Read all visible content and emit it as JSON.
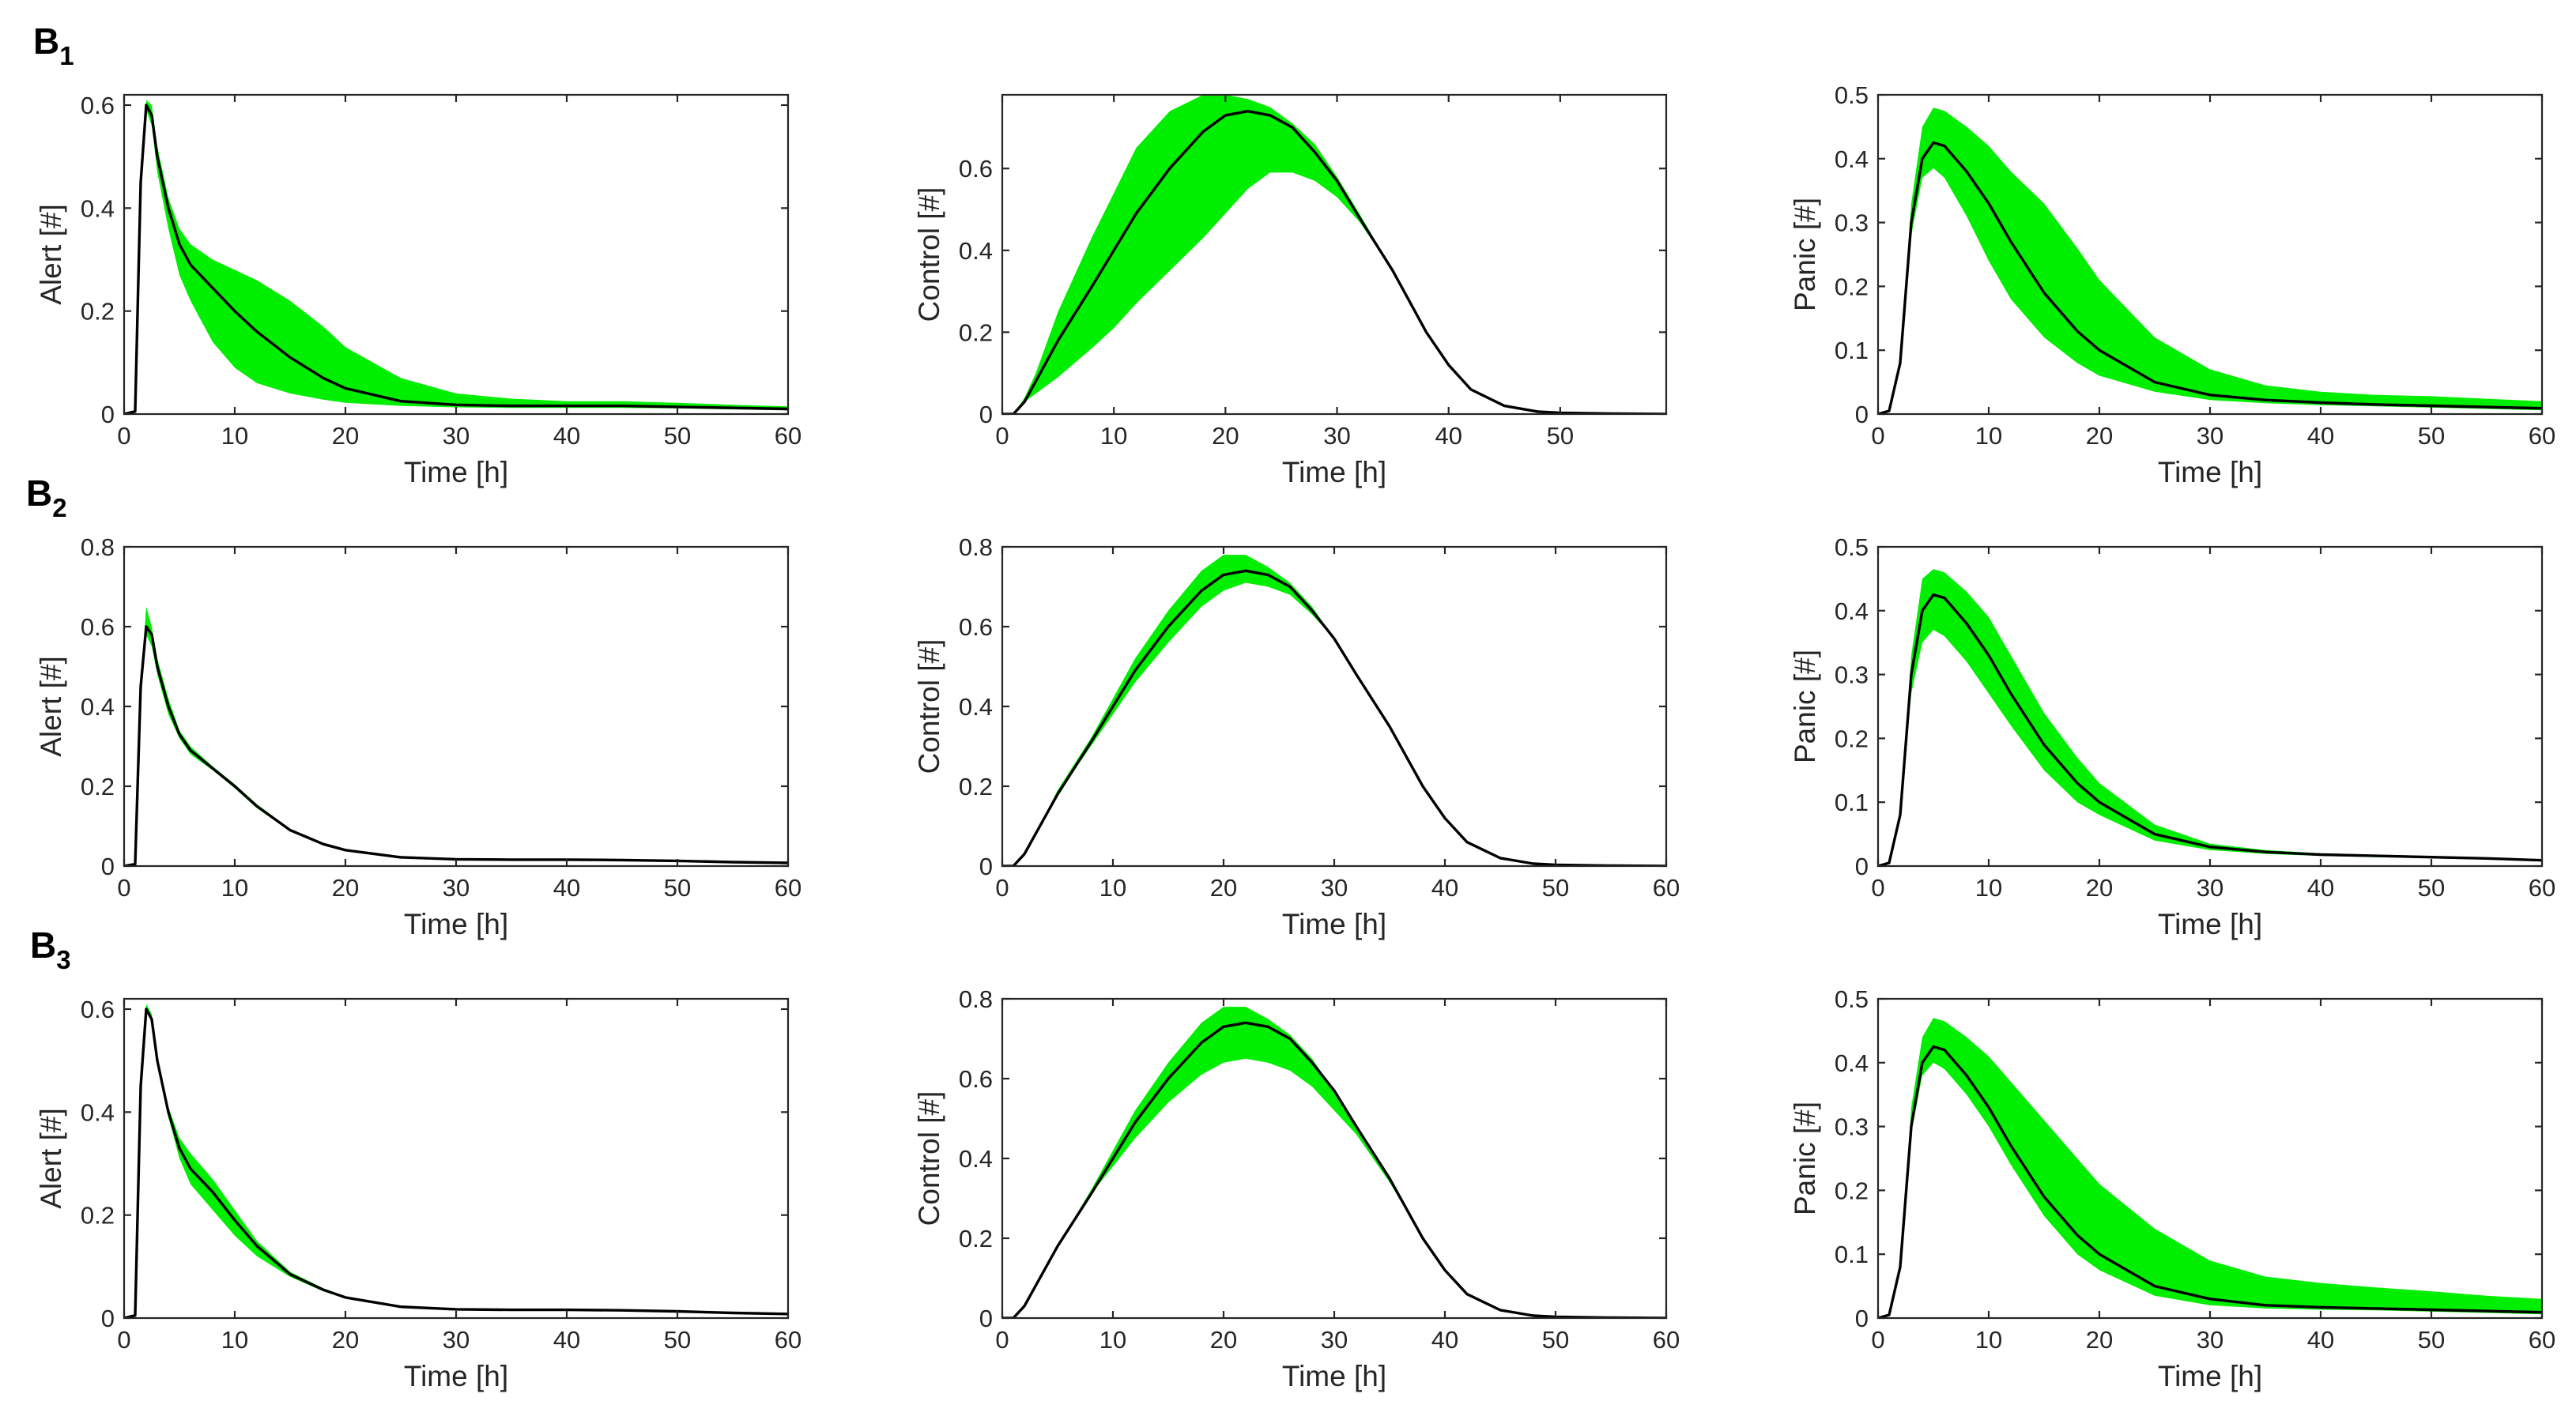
{
  "figure": {
    "rows": [
      {
        "label": "B",
        "subscript": "1"
      },
      {
        "label": "B",
        "subscript": "2"
      },
      {
        "label": "B",
        "subscript": "3"
      }
    ]
  },
  "colors": {
    "band": "#00ee00",
    "median": "#000000",
    "axis": "#262626"
  },
  "chart_data": [
    {
      "id": "B1-alert",
      "row": 0,
      "col": 0,
      "type": "area",
      "title": "",
      "xlabel": "Time [h]",
      "ylabel": "Alert [#]",
      "xlim": [
        0,
        60
      ],
      "ylim": [
        0,
        0.62
      ],
      "xticks": [
        0,
        10,
        20,
        30,
        40,
        50,
        60
      ],
      "yticks": [
        0,
        0.2,
        0.4,
        0.6
      ],
      "x": [
        0,
        1,
        1.5,
        2,
        2.5,
        3,
        4,
        5,
        6,
        8,
        10,
        12,
        15,
        18,
        20,
        25,
        30,
        35,
        40,
        45,
        50,
        55,
        60
      ],
      "median": [
        0,
        0.005,
        0.45,
        0.6,
        0.58,
        0.5,
        0.4,
        0.33,
        0.29,
        0.245,
        0.2,
        0.16,
        0.11,
        0.07,
        0.05,
        0.025,
        0.018,
        0.016,
        0.016,
        0.016,
        0.014,
        0.012,
        0.01
      ],
      "lower": [
        0,
        0.005,
        0.45,
        0.59,
        0.56,
        0.47,
        0.36,
        0.27,
        0.22,
        0.14,
        0.09,
        0.06,
        0.04,
        0.028,
        0.022,
        0.016,
        0.013,
        0.012,
        0.012,
        0.012,
        0.011,
        0.009,
        0.007
      ],
      "upper": [
        0,
        0.005,
        0.45,
        0.61,
        0.6,
        0.52,
        0.42,
        0.36,
        0.33,
        0.3,
        0.28,
        0.26,
        0.22,
        0.17,
        0.13,
        0.07,
        0.04,
        0.03,
        0.025,
        0.025,
        0.022,
        0.018,
        0.015
      ]
    },
    {
      "id": "B1-control",
      "row": 0,
      "col": 1,
      "type": "area",
      "title": "",
      "xlabel": "Time [h]",
      "ylabel": "Control [#]",
      "xlim": [
        0,
        59.5
      ],
      "ylim": [
        0,
        0.78
      ],
      "xticks": [
        0,
        10,
        20,
        30,
        40,
        50
      ],
      "yticks": [
        0,
        0.2,
        0.4,
        0.6
      ],
      "x": [
        0,
        1,
        2,
        3,
        5,
        8,
        10,
        12,
        15,
        18,
        20,
        22,
        24,
        26,
        28,
        30,
        32,
        35,
        38,
        40,
        42,
        45,
        48,
        50,
        55,
        59.5
      ],
      "median": [
        0,
        0,
        0.03,
        0.08,
        0.18,
        0.31,
        0.4,
        0.49,
        0.6,
        0.69,
        0.73,
        0.74,
        0.73,
        0.7,
        0.64,
        0.57,
        0.48,
        0.35,
        0.2,
        0.12,
        0.06,
        0.02,
        0.006,
        0.003,
        0.001,
        0
      ],
      "lower": [
        0,
        0,
        0.03,
        0.05,
        0.09,
        0.16,
        0.21,
        0.27,
        0.35,
        0.43,
        0.49,
        0.55,
        0.59,
        0.59,
        0.57,
        0.53,
        0.47,
        0.35,
        0.2,
        0.12,
        0.06,
        0.02,
        0.006,
        0.003,
        0.001,
        0
      ],
      "upper": [
        0,
        0,
        0.04,
        0.1,
        0.25,
        0.43,
        0.54,
        0.65,
        0.74,
        0.78,
        0.78,
        0.77,
        0.75,
        0.71,
        0.66,
        0.58,
        0.49,
        0.35,
        0.2,
        0.12,
        0.06,
        0.02,
        0.006,
        0.003,
        0.001,
        0
      ]
    },
    {
      "id": "B1-panic",
      "row": 0,
      "col": 2,
      "type": "area",
      "title": "",
      "xlabel": "Time [h]",
      "ylabel": "Panic [#]",
      "xlim": [
        0,
        60
      ],
      "ylim": [
        0,
        0.5
      ],
      "xticks": [
        0,
        10,
        20,
        30,
        40,
        50,
        60
      ],
      "yticks": [
        0,
        0.1,
        0.2,
        0.3,
        0.4,
        0.5
      ],
      "x": [
        0,
        1,
        2,
        3,
        4,
        5,
        6,
        8,
        10,
        12,
        15,
        18,
        20,
        25,
        30,
        35,
        40,
        45,
        50,
        55,
        60
      ],
      "median": [
        0,
        0.005,
        0.08,
        0.3,
        0.4,
        0.425,
        0.42,
        0.38,
        0.33,
        0.27,
        0.19,
        0.13,
        0.1,
        0.05,
        0.03,
        0.022,
        0.018,
        0.015,
        0.013,
        0.011,
        0.009
      ],
      "lower": [
        0,
        0.005,
        0.08,
        0.28,
        0.37,
        0.385,
        0.37,
        0.31,
        0.24,
        0.18,
        0.12,
        0.08,
        0.06,
        0.035,
        0.022,
        0.017,
        0.014,
        0.012,
        0.01,
        0.008,
        0.006
      ],
      "upper": [
        0,
        0.005,
        0.08,
        0.33,
        0.45,
        0.48,
        0.475,
        0.45,
        0.42,
        0.38,
        0.33,
        0.26,
        0.21,
        0.12,
        0.07,
        0.045,
        0.035,
        0.03,
        0.028,
        0.024,
        0.02
      ]
    },
    {
      "id": "B2-alert",
      "row": 1,
      "col": 0,
      "type": "area",
      "title": "",
      "xlabel": "Time [h]",
      "ylabel": "Alert [#]",
      "xlim": [
        0,
        60
      ],
      "ylim": [
        0,
        0.8
      ],
      "xticks": [
        0,
        10,
        20,
        30,
        40,
        50,
        60
      ],
      "yticks": [
        0,
        0.2,
        0.4,
        0.6,
        0.8
      ],
      "x": [
        0,
        1,
        1.5,
        2,
        2.5,
        3,
        4,
        5,
        6,
        8,
        10,
        12,
        15,
        18,
        20,
        25,
        30,
        35,
        40,
        45,
        50,
        55,
        60
      ],
      "median": [
        0,
        0.005,
        0.45,
        0.6,
        0.58,
        0.5,
        0.4,
        0.33,
        0.29,
        0.245,
        0.2,
        0.15,
        0.09,
        0.055,
        0.04,
        0.022,
        0.017,
        0.016,
        0.016,
        0.015,
        0.013,
        0.01,
        0.008
      ],
      "lower": [
        0,
        0.005,
        0.45,
        0.58,
        0.55,
        0.48,
        0.38,
        0.32,
        0.28,
        0.24,
        0.195,
        0.145,
        0.087,
        0.053,
        0.038,
        0.021,
        0.016,
        0.015,
        0.015,
        0.014,
        0.012,
        0.009,
        0.007
      ],
      "upper": [
        0,
        0.005,
        0.45,
        0.65,
        0.6,
        0.52,
        0.42,
        0.34,
        0.3,
        0.25,
        0.205,
        0.155,
        0.093,
        0.057,
        0.042,
        0.023,
        0.018,
        0.017,
        0.017,
        0.016,
        0.014,
        0.011,
        0.009
      ]
    },
    {
      "id": "B2-control",
      "row": 1,
      "col": 1,
      "type": "area",
      "title": "",
      "xlabel": "Time [h]",
      "ylabel": "Control [#]",
      "xlim": [
        0,
        60
      ],
      "ylim": [
        0,
        0.8
      ],
      "xticks": [
        0,
        10,
        20,
        30,
        40,
        50,
        60
      ],
      "yticks": [
        0,
        0.2,
        0.4,
        0.6,
        0.8
      ],
      "x": [
        0,
        1,
        2,
        3,
        5,
        8,
        10,
        12,
        15,
        18,
        20,
        22,
        24,
        26,
        28,
        30,
        32,
        35,
        38,
        40,
        42,
        45,
        48,
        50,
        55,
        60
      ],
      "median": [
        0,
        0,
        0.03,
        0.08,
        0.18,
        0.31,
        0.4,
        0.49,
        0.6,
        0.69,
        0.73,
        0.74,
        0.73,
        0.7,
        0.64,
        0.57,
        0.48,
        0.35,
        0.2,
        0.12,
        0.06,
        0.02,
        0.006,
        0.003,
        0.001,
        0
      ],
      "lower": [
        0,
        0,
        0.03,
        0.08,
        0.18,
        0.3,
        0.38,
        0.46,
        0.56,
        0.65,
        0.69,
        0.71,
        0.7,
        0.68,
        0.63,
        0.57,
        0.48,
        0.35,
        0.2,
        0.12,
        0.06,
        0.02,
        0.006,
        0.003,
        0.001,
        0
      ],
      "upper": [
        0,
        0,
        0.03,
        0.08,
        0.19,
        0.32,
        0.42,
        0.52,
        0.64,
        0.74,
        0.78,
        0.78,
        0.75,
        0.71,
        0.65,
        0.57,
        0.48,
        0.35,
        0.2,
        0.12,
        0.06,
        0.02,
        0.006,
        0.003,
        0.001,
        0
      ]
    },
    {
      "id": "B2-panic",
      "row": 1,
      "col": 2,
      "type": "area",
      "title": "",
      "xlabel": "Time [h]",
      "ylabel": "Panic [#]",
      "xlim": [
        0,
        60
      ],
      "ylim": [
        0,
        0.5
      ],
      "xticks": [
        0,
        10,
        20,
        30,
        40,
        50,
        60
      ],
      "yticks": [
        0,
        0.1,
        0.2,
        0.3,
        0.4,
        0.5
      ],
      "x": [
        0,
        1,
        2,
        3,
        4,
        5,
        6,
        8,
        10,
        12,
        15,
        18,
        20,
        25,
        30,
        35,
        40,
        45,
        50,
        55,
        60
      ],
      "median": [
        0,
        0.005,
        0.08,
        0.3,
        0.4,
        0.425,
        0.42,
        0.38,
        0.33,
        0.27,
        0.19,
        0.13,
        0.1,
        0.05,
        0.03,
        0.022,
        0.018,
        0.016,
        0.014,
        0.012,
        0.009
      ],
      "lower": [
        0,
        0.005,
        0.08,
        0.27,
        0.35,
        0.37,
        0.36,
        0.32,
        0.27,
        0.22,
        0.15,
        0.1,
        0.08,
        0.04,
        0.025,
        0.019,
        0.016,
        0.014,
        0.012,
        0.01,
        0.008
      ],
      "upper": [
        0,
        0.005,
        0.08,
        0.33,
        0.45,
        0.465,
        0.46,
        0.43,
        0.39,
        0.33,
        0.24,
        0.17,
        0.13,
        0.065,
        0.035,
        0.025,
        0.02,
        0.018,
        0.016,
        0.013,
        0.01
      ]
    },
    {
      "id": "B3-alert",
      "row": 2,
      "col": 0,
      "type": "area",
      "title": "",
      "xlabel": "Time [h]",
      "ylabel": "Alert [#]",
      "xlim": [
        0,
        60
      ],
      "ylim": [
        0,
        0.62
      ],
      "xticks": [
        0,
        10,
        20,
        30,
        40,
        50,
        60
      ],
      "yticks": [
        0,
        0.2,
        0.4,
        0.6
      ],
      "x": [
        0,
        1,
        1.5,
        2,
        2.5,
        3,
        4,
        5,
        6,
        8,
        10,
        12,
        15,
        18,
        20,
        25,
        30,
        35,
        40,
        45,
        50,
        55,
        60
      ],
      "median": [
        0,
        0.005,
        0.45,
        0.6,
        0.58,
        0.5,
        0.4,
        0.33,
        0.29,
        0.245,
        0.19,
        0.14,
        0.085,
        0.055,
        0.04,
        0.022,
        0.017,
        0.016,
        0.016,
        0.015,
        0.013,
        0.01,
        0.008
      ],
      "lower": [
        0,
        0.005,
        0.45,
        0.6,
        0.58,
        0.5,
        0.39,
        0.31,
        0.26,
        0.21,
        0.16,
        0.12,
        0.08,
        0.052,
        0.038,
        0.021,
        0.016,
        0.015,
        0.015,
        0.014,
        0.012,
        0.009,
        0.007
      ],
      "upper": [
        0,
        0.005,
        0.45,
        0.61,
        0.59,
        0.51,
        0.41,
        0.35,
        0.32,
        0.27,
        0.21,
        0.15,
        0.09,
        0.058,
        0.042,
        0.023,
        0.018,
        0.017,
        0.017,
        0.016,
        0.014,
        0.011,
        0.009
      ]
    },
    {
      "id": "B3-control",
      "row": 2,
      "col": 1,
      "type": "area",
      "title": "",
      "xlabel": "Time [h]",
      "ylabel": "Control [#]",
      "xlim": [
        0,
        60
      ],
      "ylim": [
        0,
        0.8
      ],
      "xticks": [
        0,
        10,
        20,
        30,
        40,
        50,
        60
      ],
      "yticks": [
        0,
        0.2,
        0.4,
        0.6,
        0.8
      ],
      "x": [
        0,
        1,
        2,
        3,
        5,
        8,
        10,
        12,
        15,
        18,
        20,
        22,
        24,
        26,
        28,
        30,
        32,
        35,
        38,
        40,
        42,
        45,
        48,
        50,
        55,
        60
      ],
      "median": [
        0,
        0,
        0.03,
        0.08,
        0.18,
        0.31,
        0.4,
        0.49,
        0.6,
        0.69,
        0.73,
        0.74,
        0.73,
        0.7,
        0.64,
        0.57,
        0.48,
        0.35,
        0.2,
        0.12,
        0.06,
        0.02,
        0.006,
        0.003,
        0.001,
        0
      ],
      "lower": [
        0,
        0,
        0.03,
        0.08,
        0.18,
        0.31,
        0.38,
        0.45,
        0.54,
        0.61,
        0.64,
        0.65,
        0.64,
        0.62,
        0.58,
        0.52,
        0.46,
        0.34,
        0.2,
        0.12,
        0.06,
        0.02,
        0.006,
        0.003,
        0.001,
        0
      ],
      "upper": [
        0,
        0,
        0.03,
        0.08,
        0.18,
        0.32,
        0.42,
        0.52,
        0.64,
        0.74,
        0.78,
        0.78,
        0.75,
        0.71,
        0.65,
        0.57,
        0.48,
        0.35,
        0.2,
        0.12,
        0.06,
        0.02,
        0.006,
        0.003,
        0.001,
        0
      ]
    },
    {
      "id": "B3-panic",
      "row": 2,
      "col": 2,
      "type": "area",
      "title": "",
      "xlabel": "Time [h]",
      "ylabel": "Panic [#]",
      "xlim": [
        0,
        60
      ],
      "ylim": [
        0,
        0.5
      ],
      "xticks": [
        0,
        10,
        20,
        30,
        40,
        50,
        60
      ],
      "yticks": [
        0,
        0.1,
        0.2,
        0.3,
        0.4,
        0.5
      ],
      "x": [
        0,
        1,
        2,
        3,
        4,
        5,
        6,
        8,
        10,
        12,
        15,
        18,
        20,
        25,
        30,
        35,
        40,
        45,
        50,
        55,
        60
      ],
      "median": [
        0,
        0.005,
        0.08,
        0.3,
        0.4,
        0.425,
        0.42,
        0.38,
        0.33,
        0.27,
        0.19,
        0.13,
        0.1,
        0.05,
        0.03,
        0.02,
        0.017,
        0.015,
        0.013,
        0.011,
        0.009
      ],
      "lower": [
        0,
        0.005,
        0.08,
        0.29,
        0.38,
        0.4,
        0.39,
        0.35,
        0.3,
        0.24,
        0.16,
        0.1,
        0.075,
        0.035,
        0.02,
        0.015,
        0.013,
        0.012,
        0.01,
        0.008,
        0.006
      ],
      "upper": [
        0,
        0.005,
        0.08,
        0.33,
        0.44,
        0.47,
        0.465,
        0.44,
        0.41,
        0.37,
        0.31,
        0.25,
        0.21,
        0.14,
        0.09,
        0.065,
        0.055,
        0.048,
        0.042,
        0.035,
        0.03
      ]
    }
  ]
}
